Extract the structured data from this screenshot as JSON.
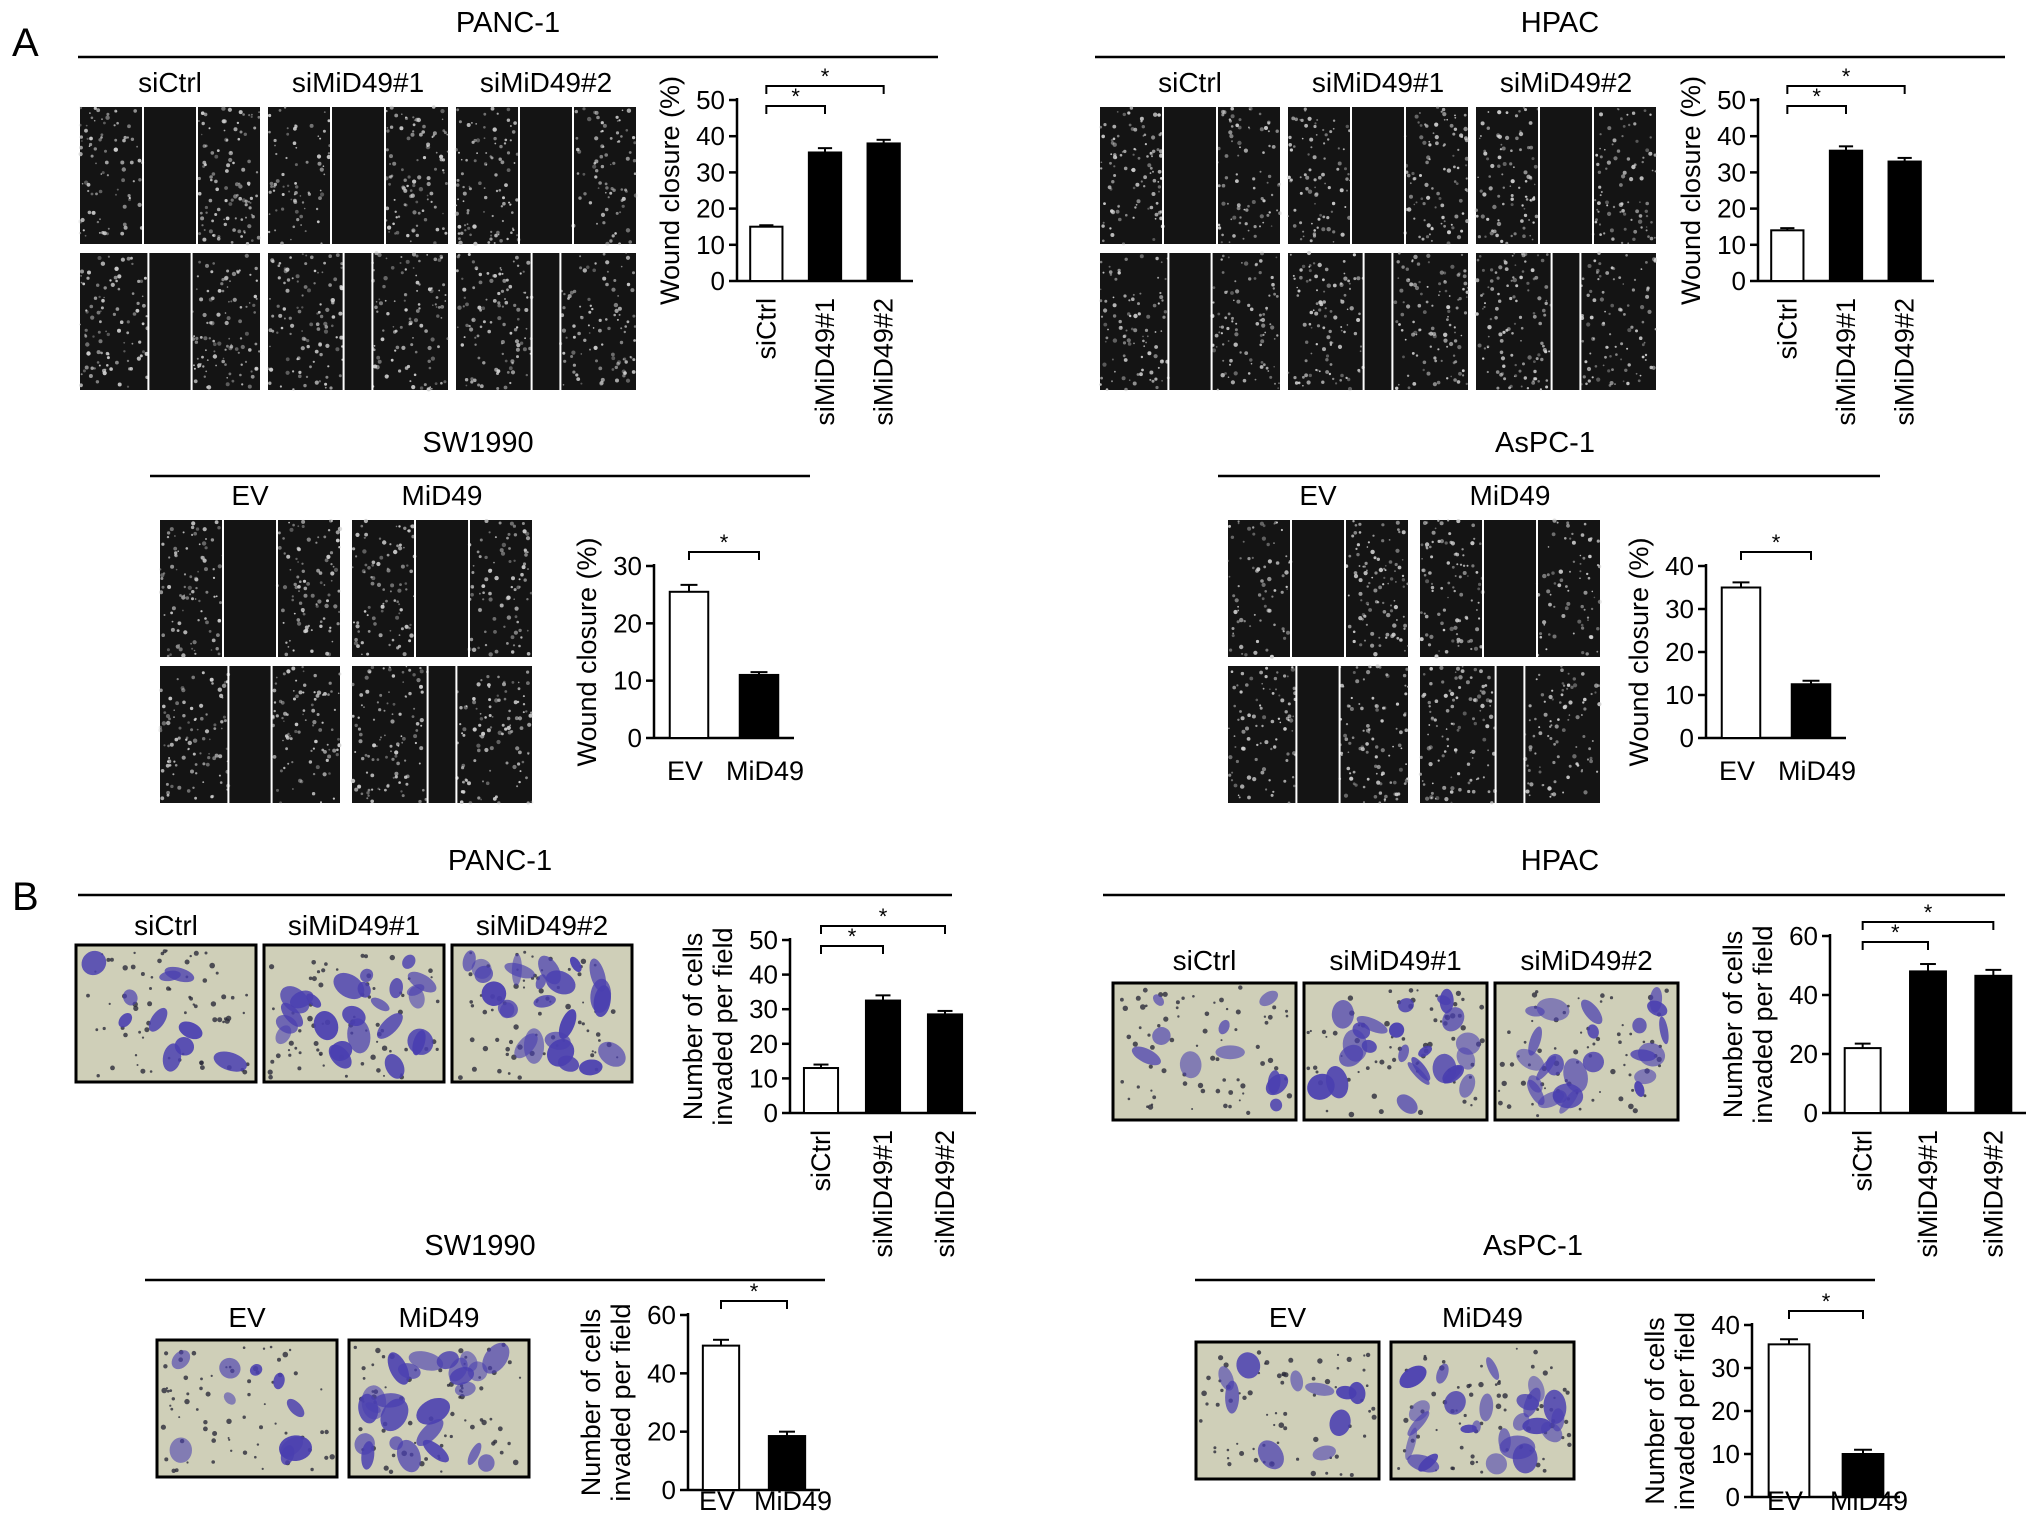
{
  "figure": {
    "panel_labels": [
      "A",
      "B"
    ],
    "colors": {
      "control_bar": "#ffffff",
      "treated_bar": "#000000",
      "axis": "#000000",
      "wound_bg": "#141414",
      "cell_dot": "#d2d2d2",
      "membrane_bg": "#cfcfb8",
      "stain": "#4a3fb0"
    }
  },
  "panels": [
    {
      "panel": "A",
      "cell_line": "PANC-1",
      "assay": "wound",
      "image_labels": [
        "siCtrl",
        "siMiD49#1",
        "siMiD49#2"
      ],
      "chart_data": {
        "type": "bar",
        "title": "",
        "xlabel": "",
        "ylabel": "Wound closure (%)",
        "categories": [
          "siCtrl",
          "siMiD49#1",
          "siMiD49#2"
        ],
        "values": [
          15,
          35.5,
          38
        ],
        "errors": [
          0.4,
          1.2,
          1.0
        ],
        "fill": [
          "white",
          "black",
          "black"
        ],
        "ylim": [
          0,
          50
        ],
        "yticks": [
          0,
          10,
          20,
          30,
          40,
          50
        ],
        "significance": [
          {
            "from": 0,
            "to": 1,
            "label": "*"
          },
          {
            "from": 0,
            "to": 2,
            "label": "*"
          }
        ]
      }
    },
    {
      "panel": "A",
      "cell_line": "HPAC",
      "assay": "wound",
      "image_labels": [
        "siCtrl",
        "siMiD49#1",
        "siMiD49#2"
      ],
      "chart_data": {
        "type": "bar",
        "title": "",
        "xlabel": "",
        "ylabel": "Wound closure (%)",
        "categories": [
          "siCtrl",
          "siMiD49#1",
          "siMiD49#2"
        ],
        "values": [
          14,
          36,
          33
        ],
        "errors": [
          0.6,
          1.2,
          1.0
        ],
        "fill": [
          "white",
          "black",
          "black"
        ],
        "ylim": [
          0,
          50
        ],
        "yticks": [
          0,
          10,
          20,
          30,
          40,
          50
        ],
        "significance": [
          {
            "from": 0,
            "to": 1,
            "label": "*"
          },
          {
            "from": 0,
            "to": 2,
            "label": "*"
          }
        ]
      }
    },
    {
      "panel": "A",
      "cell_line": "SW1990",
      "assay": "wound",
      "image_labels": [
        "EV",
        "MiD49"
      ],
      "chart_data": {
        "type": "bar",
        "title": "",
        "xlabel": "",
        "ylabel": "Wound closure (%)",
        "categories": [
          "EV",
          "MiD49"
        ],
        "values": [
          25.5,
          11
        ],
        "errors": [
          1.2,
          0.5
        ],
        "fill": [
          "white",
          "black"
        ],
        "ylim": [
          0,
          30
        ],
        "yticks": [
          0,
          10,
          20,
          30
        ],
        "significance": [
          {
            "from": 0,
            "to": 1,
            "label": "*"
          }
        ]
      }
    },
    {
      "panel": "A",
      "cell_line": "AsPC-1",
      "assay": "wound",
      "image_labels": [
        "EV",
        "MiD49"
      ],
      "chart_data": {
        "type": "bar",
        "title": "",
        "xlabel": "",
        "ylabel": "Wound closure (%)",
        "categories": [
          "EV",
          "MiD49"
        ],
        "values": [
          35,
          12.5
        ],
        "errors": [
          1.2,
          0.8
        ],
        "fill": [
          "white",
          "black"
        ],
        "ylim": [
          0,
          40
        ],
        "yticks": [
          0,
          10,
          20,
          30,
          40
        ],
        "significance": [
          {
            "from": 0,
            "to": 1,
            "label": "*"
          }
        ]
      }
    },
    {
      "panel": "B",
      "cell_line": "PANC-1",
      "assay": "invasion",
      "image_labels": [
        "siCtrl",
        "siMiD49#1",
        "siMiD49#2"
      ],
      "chart_data": {
        "type": "bar",
        "title": "",
        "xlabel": "",
        "ylabel": [
          "Number of cells",
          "invaded per field"
        ],
        "categories": [
          "siCtrl",
          "siMiD49#1",
          "siMiD49#2"
        ],
        "values": [
          13,
          32.5,
          28.5
        ],
        "errors": [
          1.0,
          1.5,
          1.0
        ],
        "fill": [
          "white",
          "black",
          "black"
        ],
        "ylim": [
          0,
          50
        ],
        "yticks": [
          0,
          10,
          20,
          30,
          40,
          50
        ],
        "significance": [
          {
            "from": 0,
            "to": 1,
            "label": "*"
          },
          {
            "from": 0,
            "to": 2,
            "label": "*"
          }
        ]
      }
    },
    {
      "panel": "B",
      "cell_line": "HPAC",
      "assay": "invasion",
      "image_labels": [
        "siCtrl",
        "siMiD49#1",
        "siMiD49#2"
      ],
      "chart_data": {
        "type": "bar",
        "title": "",
        "xlabel": "",
        "ylabel": [
          "Number of cells",
          "invaded per field"
        ],
        "categories": [
          "siCtrl",
          "siMiD49#1",
          "siMiD49#2"
        ],
        "values": [
          22,
          48,
          46.5
        ],
        "errors": [
          1.5,
          2.5,
          2.0
        ],
        "fill": [
          "white",
          "black",
          "black"
        ],
        "ylim": [
          0,
          60
        ],
        "yticks": [
          0,
          20,
          40,
          60
        ],
        "significance": [
          {
            "from": 0,
            "to": 1,
            "label": "*"
          },
          {
            "from": 0,
            "to": 2,
            "label": "*"
          }
        ]
      }
    },
    {
      "panel": "B",
      "cell_line": "SW1990",
      "assay": "invasion",
      "image_labels": [
        "EV",
        "MiD49"
      ],
      "chart_data": {
        "type": "bar",
        "title": "",
        "xlabel": "",
        "ylabel": [
          "Number of cells",
          "invaded per field"
        ],
        "categories": [
          "EV",
          "MiD49"
        ],
        "values": [
          49.5,
          18.5
        ],
        "errors": [
          2.0,
          1.5
        ],
        "fill": [
          "white",
          "black"
        ],
        "ylim": [
          0,
          60
        ],
        "yticks": [
          0,
          20,
          40,
          60
        ],
        "significance": [
          {
            "from": 0,
            "to": 1,
            "label": "*"
          }
        ]
      }
    },
    {
      "panel": "B",
      "cell_line": "AsPC-1",
      "assay": "invasion",
      "image_labels": [
        "EV",
        "MiD49"
      ],
      "chart_data": {
        "type": "bar",
        "title": "",
        "xlabel": "",
        "ylabel": [
          "Number of cells",
          "invaded per field"
        ],
        "categories": [
          "EV",
          "MiD49"
        ],
        "values": [
          35.5,
          10
        ],
        "errors": [
          1.2,
          1.0
        ],
        "fill": [
          "white",
          "black"
        ],
        "ylim": [
          0,
          40
        ],
        "yticks": [
          0,
          10,
          20,
          30,
          40
        ],
        "significance": [
          {
            "from": 0,
            "to": 1,
            "label": "*"
          }
        ]
      }
    }
  ]
}
